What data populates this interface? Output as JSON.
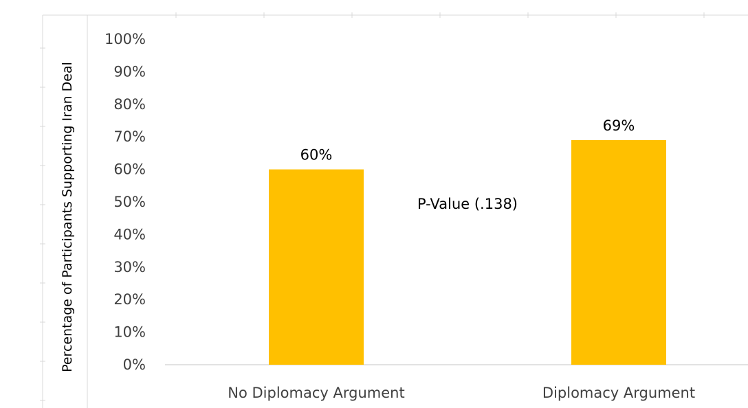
{
  "chart_data": {
    "type": "bar",
    "categories": [
      "No Diplomacy Argument",
      "Diplomacy Argument"
    ],
    "values": [
      60,
      69
    ],
    "data_labels": [
      "60%",
      "69%"
    ],
    "title": "",
    "xlabel": "",
    "ylabel": "Percentage of Participants Supporting Iran Deal",
    "ylim": [
      0,
      100
    ],
    "ytick_values": [
      0,
      10,
      20,
      30,
      40,
      50,
      60,
      70,
      80,
      90,
      100
    ],
    "yticks": [
      "0%",
      "10%",
      "20%",
      "30%",
      "40%",
      "50%",
      "60%",
      "70%",
      "80%",
      "90%",
      "100%"
    ],
    "grid": false,
    "legend": "none",
    "bar_color": "#FFC000",
    "annotations": [
      {
        "text": "P-Value (.138)"
      }
    ]
  }
}
